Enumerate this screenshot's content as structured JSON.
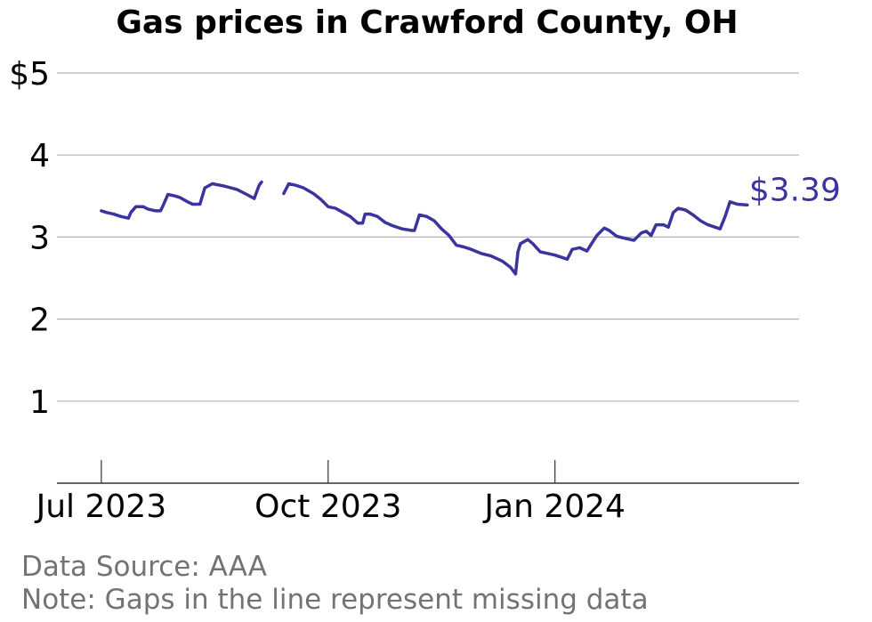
{
  "chart_data": {
    "type": "line",
    "title": "Gas prices in Crawford County, OH",
    "xlabel": "",
    "ylabel": "",
    "ylim": [
      0,
      5
    ],
    "xlim": [
      "2023-06-13",
      "2024-04-09"
    ],
    "yticks": [
      {
        "value": 1,
        "label": "1"
      },
      {
        "value": 2,
        "label": "2"
      },
      {
        "value": 3,
        "label": "3"
      },
      {
        "value": 4,
        "label": "4"
      },
      {
        "value": 5,
        "label": "$5"
      }
    ],
    "xticks": [
      {
        "date": "2023-07-01",
        "label": "Jul 2023"
      },
      {
        "date": "2023-10-01",
        "label": "Oct 2023"
      },
      {
        "date": "2024-01-01",
        "label": "Jan 2024"
      }
    ],
    "grid": true,
    "legend": "none",
    "color": "#3a33a0",
    "end_label": "$3.39",
    "series": [
      {
        "segments": [
          [
            [
              "2023-07-01",
              3.32
            ],
            [
              "2023-07-03",
              3.3
            ],
            [
              "2023-07-06",
              3.28
            ],
            [
              "2023-07-09",
              3.25
            ],
            [
              "2023-07-12",
              3.23
            ],
            [
              "2023-07-13",
              3.3
            ],
            [
              "2023-07-15",
              3.37
            ],
            [
              "2023-07-18",
              3.37
            ],
            [
              "2023-07-20",
              3.34
            ],
            [
              "2023-07-23",
              3.32
            ],
            [
              "2023-07-25",
              3.32
            ],
            [
              "2023-07-26",
              3.38
            ],
            [
              "2023-07-28",
              3.52
            ],
            [
              "2023-07-31",
              3.5
            ],
            [
              "2023-08-02",
              3.48
            ],
            [
              "2023-08-05",
              3.43
            ],
            [
              "2023-08-07",
              3.4
            ],
            [
              "2023-08-10",
              3.4
            ],
            [
              "2023-08-12",
              3.6
            ],
            [
              "2023-08-15",
              3.65
            ],
            [
              "2023-08-20",
              3.62
            ],
            [
              "2023-08-25",
              3.58
            ],
            [
              "2023-08-29",
              3.52
            ],
            [
              "2023-09-01",
              3.47
            ],
            [
              "2023-09-03",
              3.63
            ],
            [
              "2023-09-04",
              3.67
            ]
          ],
          [
            [
              "2023-09-13",
              3.53
            ],
            [
              "2023-09-15",
              3.65
            ],
            [
              "2023-09-18",
              3.63
            ],
            [
              "2023-09-21",
              3.6
            ],
            [
              "2023-09-25",
              3.53
            ],
            [
              "2023-09-28",
              3.46
            ],
            [
              "2023-10-01",
              3.37
            ],
            [
              "2023-10-04",
              3.35
            ],
            [
              "2023-10-07",
              3.3
            ],
            [
              "2023-10-10",
              3.25
            ],
            [
              "2023-10-13",
              3.17
            ],
            [
              "2023-10-15",
              3.17
            ],
            [
              "2023-10-16",
              3.28
            ],
            [
              "2023-10-18",
              3.28
            ],
            [
              "2023-10-21",
              3.25
            ],
            [
              "2023-10-24",
              3.18
            ],
            [
              "2023-10-27",
              3.14
            ],
            [
              "2023-10-31",
              3.1
            ],
            [
              "2023-11-04",
              3.08
            ],
            [
              "2023-11-05",
              3.08
            ],
            [
              "2023-11-07",
              3.27
            ],
            [
              "2023-11-10",
              3.25
            ],
            [
              "2023-11-13",
              3.2
            ],
            [
              "2023-11-16",
              3.1
            ],
            [
              "2023-11-19",
              3.02
            ],
            [
              "2023-11-22",
              2.9
            ],
            [
              "2023-11-25",
              2.88
            ],
            [
              "2023-11-28",
              2.85
            ],
            [
              "2023-12-02",
              2.8
            ],
            [
              "2023-12-06",
              2.77
            ],
            [
              "2023-12-09",
              2.73
            ],
            [
              "2023-12-11",
              2.7
            ],
            [
              "2023-12-14",
              2.63
            ],
            [
              "2023-12-16",
              2.55
            ],
            [
              "2023-12-17",
              2.82
            ],
            [
              "2023-12-18",
              2.92
            ],
            [
              "2023-12-21",
              2.97
            ],
            [
              "2023-12-23",
              2.92
            ],
            [
              "2023-12-26",
              2.82
            ],
            [
              "2023-12-29",
              2.8
            ],
            [
              "2024-01-01",
              2.78
            ],
            [
              "2024-01-04",
              2.75
            ],
            [
              "2024-01-06",
              2.73
            ],
            [
              "2024-01-08",
              2.85
            ],
            [
              "2024-01-11",
              2.87
            ],
            [
              "2024-01-14",
              2.83
            ],
            [
              "2024-01-15",
              2.88
            ],
            [
              "2024-01-18",
              3.02
            ],
            [
              "2024-01-21",
              3.11
            ],
            [
              "2024-01-23",
              3.08
            ],
            [
              "2024-01-26",
              3.01
            ],
            [
              "2024-01-30",
              2.98
            ],
            [
              "2024-02-02",
              2.96
            ],
            [
              "2024-02-05",
              3.05
            ],
            [
              "2024-02-07",
              3.07
            ],
            [
              "2024-02-09",
              3.02
            ],
            [
              "2024-02-11",
              3.15
            ],
            [
              "2024-02-14",
              3.15
            ],
            [
              "2024-02-16",
              3.12
            ],
            [
              "2024-02-18",
              3.3
            ],
            [
              "2024-02-20",
              3.35
            ],
            [
              "2024-02-23",
              3.33
            ],
            [
              "2024-02-26",
              3.27
            ],
            [
              "2024-02-29",
              3.2
            ],
            [
              "2024-03-03",
              3.15
            ],
            [
              "2024-03-06",
              3.12
            ],
            [
              "2024-03-08",
              3.1
            ],
            [
              "2024-03-10",
              3.25
            ],
            [
              "2024-03-12",
              3.43
            ],
            [
              "2024-03-15",
              3.4
            ],
            [
              "2024-03-19",
              3.39
            ]
          ]
        ]
      }
    ]
  },
  "footer": {
    "source": "Data Source: AAA",
    "note": "Note: Gaps in the line represent missing data"
  }
}
